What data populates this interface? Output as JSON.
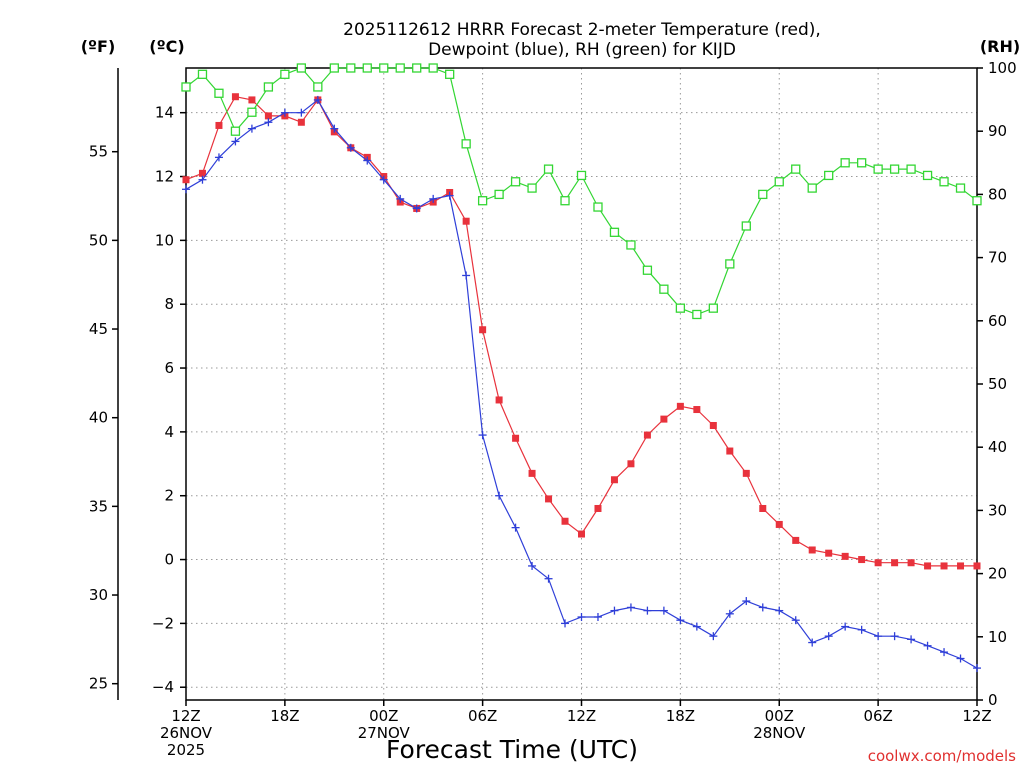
{
  "chart_data": {
    "type": "line",
    "title_line1": "2025112612 HRRR Forecast 2-meter Temperature (red),",
    "title_line2": "Dewpoint (blue), RH (green) for KIJD",
    "xlabel": "Forecast Time (UTC)",
    "credit": "coolwx.com/models",
    "units": {
      "fahrenheit": "(ºF)",
      "celsius": "(ºC)",
      "rh": "(RH)"
    },
    "x_forecast_hours": [
      0,
      48
    ],
    "ylim_celsius": [
      -4.4,
      15.4
    ],
    "ylim_fahrenheit": [
      24.08,
      59.72
    ],
    "ylim_rh": [
      0,
      100
    ],
    "celsius_ticks": [
      {
        "v": 14,
        "label": "14"
      },
      {
        "v": 12,
        "label": "12"
      },
      {
        "v": 10,
        "label": "10"
      },
      {
        "v": 8,
        "label": "8"
      },
      {
        "v": 6,
        "label": "6"
      },
      {
        "v": 4,
        "label": "4"
      },
      {
        "v": 2,
        "label": "2"
      },
      {
        "v": 0,
        "label": "0"
      },
      {
        "v": -2,
        "label": "−2"
      },
      {
        "v": -4,
        "label": "−4"
      }
    ],
    "fahrenheit_ticks": [
      {
        "v": 55,
        "label": "55"
      },
      {
        "v": 50,
        "label": "50"
      },
      {
        "v": 45,
        "label": "45"
      },
      {
        "v": 40,
        "label": "40"
      },
      {
        "v": 35,
        "label": "35"
      },
      {
        "v": 30,
        "label": "30"
      },
      {
        "v": 25,
        "label": "25"
      }
    ],
    "rh_ticks": [
      {
        "v": 100,
        "label": "100"
      },
      {
        "v": 90,
        "label": "90"
      },
      {
        "v": 80,
        "label": "80"
      },
      {
        "v": 70,
        "label": "70"
      },
      {
        "v": 60,
        "label": "60"
      },
      {
        "v": 50,
        "label": "50"
      },
      {
        "v": 40,
        "label": "40"
      },
      {
        "v": 30,
        "label": "30"
      },
      {
        "v": 20,
        "label": "20"
      },
      {
        "v": 10,
        "label": "10"
      },
      {
        "v": 0,
        "label": "0"
      }
    ],
    "x_ticks": [
      {
        "h": 0,
        "lines": [
          "12Z",
          "26NOV",
          "2025"
        ]
      },
      {
        "h": 6,
        "lines": [
          "18Z"
        ]
      },
      {
        "h": 12,
        "lines": [
          "00Z",
          "27NOV"
        ]
      },
      {
        "h": 18,
        "lines": [
          "06Z"
        ]
      },
      {
        "h": 24,
        "lines": [
          "12Z"
        ]
      },
      {
        "h": 30,
        "lines": [
          "18Z"
        ]
      },
      {
        "h": 36,
        "lines": [
          "00Z",
          "28NOV"
        ]
      },
      {
        "h": 42,
        "lines": [
          "06Z"
        ]
      },
      {
        "h": 48,
        "lines": [
          "12Z"
        ]
      }
    ],
    "series": [
      {
        "name": "2-meter Temperature",
        "units": "°C",
        "color": "#e8323c",
        "marker": "filled-square",
        "axis": "celsius",
        "values": [
          11.9,
          12.1,
          13.6,
          14.5,
          14.4,
          13.9,
          13.9,
          13.7,
          14.4,
          13.4,
          12.9,
          12.6,
          12.0,
          11.2,
          11.0,
          11.2,
          11.5,
          10.6,
          7.2,
          5.0,
          3.8,
          2.7,
          1.9,
          1.2,
          0.8,
          1.6,
          2.5,
          3.0,
          3.9,
          4.4,
          4.8,
          4.7,
          4.2,
          3.4,
          2.7,
          1.6,
          1.1,
          0.6,
          0.3,
          0.2,
          0.1,
          0.0,
          -0.1,
          -0.1,
          -0.1,
          -0.2,
          -0.2,
          -0.2,
          -0.2
        ]
      },
      {
        "name": "Dewpoint",
        "units": "°C",
        "color": "#2f3fd8",
        "marker": "plus",
        "axis": "celsius",
        "values": [
          11.6,
          11.9,
          12.6,
          13.1,
          13.5,
          13.7,
          14.0,
          14.0,
          14.4,
          13.5,
          12.9,
          12.5,
          11.9,
          11.3,
          11.0,
          11.3,
          11.4,
          8.9,
          3.9,
          2.0,
          1.0,
          -0.2,
          -0.6,
          -2.0,
          -1.8,
          -1.8,
          -1.6,
          -1.5,
          -1.6,
          -1.6,
          -1.9,
          -2.1,
          -2.4,
          -1.7,
          -1.3,
          -1.5,
          -1.6,
          -1.9,
          -2.6,
          -2.4,
          -2.1,
          -2.2,
          -2.4,
          -2.4,
          -2.5,
          -2.7,
          -2.9,
          -3.1,
          -3.4
        ]
      },
      {
        "name": "RH",
        "units": "%",
        "color": "#33d633",
        "marker": "open-square",
        "axis": "rh",
        "values": [
          97,
          99,
          96,
          90,
          93,
          97,
          99,
          100,
          97,
          100,
          100,
          100,
          100,
          100,
          100,
          100,
          99,
          88,
          79,
          80,
          82,
          81,
          84,
          79,
          83,
          78,
          74,
          72,
          68,
          65,
          62,
          61,
          62,
          69,
          75,
          80,
          82,
          84,
          81,
          83,
          85,
          85,
          84,
          84,
          84,
          83,
          82,
          81,
          79
        ]
      }
    ]
  }
}
